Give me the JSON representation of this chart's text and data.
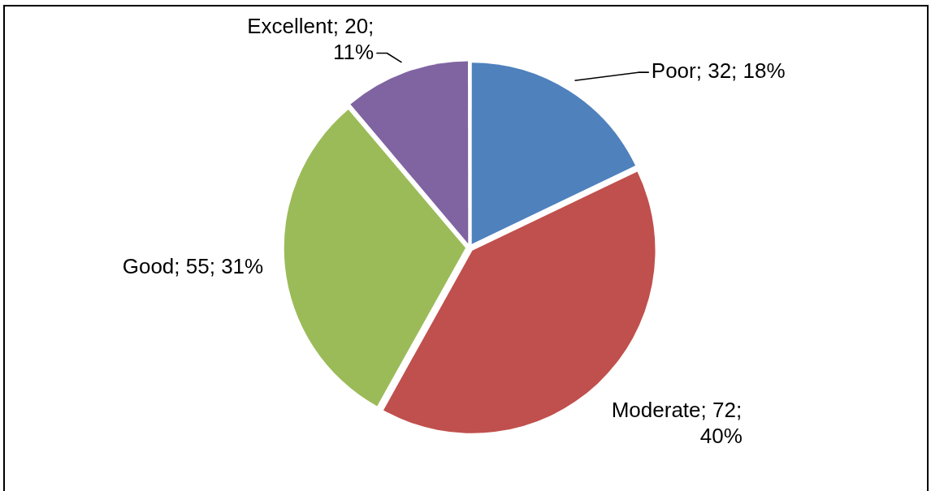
{
  "chart_data": {
    "type": "pie",
    "categories": [
      "Poor",
      "Moderate",
      "Good",
      "Excellent"
    ],
    "values": [
      32,
      72,
      55,
      20
    ],
    "colors": [
      "#4f81bd",
      "#c0504d",
      "#9bbb59",
      "#8064a2"
    ],
    "value_labels": [
      "; 32; 18%",
      "; 72; 40%",
      "; 55; 31%",
      "; 20; 11%"
    ],
    "legend": false
  }
}
